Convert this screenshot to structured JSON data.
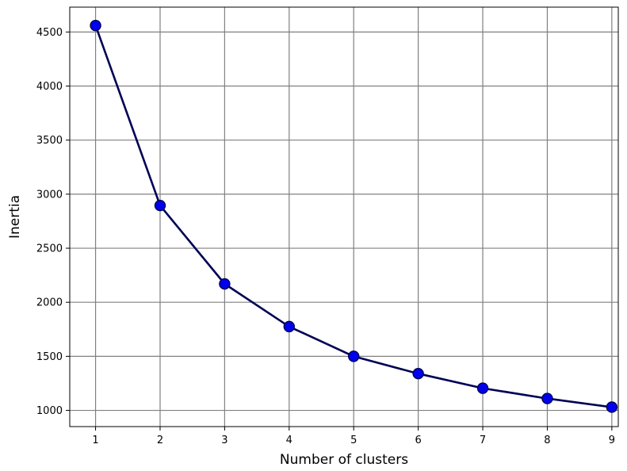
{
  "chart_data": {
    "type": "line",
    "title": "",
    "xlabel": "Number of clusters",
    "ylabel": "Inertia",
    "x": [
      1,
      2,
      3,
      4,
      5,
      6,
      7,
      8,
      9
    ],
    "series": [
      {
        "values": [
          4560,
          2895,
          2170,
          1775,
          1500,
          1340,
          1205,
          1110,
          1030
        ],
        "line_color": "#000055",
        "marker_color": "#0000ee",
        "marker": "circle"
      }
    ],
    "xticks": [
      1,
      2,
      3,
      4,
      5,
      6,
      7,
      8,
      9
    ],
    "yticks": [
      1000,
      1500,
      2000,
      2500,
      3000,
      3500,
      4000,
      4500
    ],
    "xlim": [
      0.6,
      9.1
    ],
    "ylim": [
      850,
      4730
    ],
    "grid": true,
    "legend": "none"
  }
}
